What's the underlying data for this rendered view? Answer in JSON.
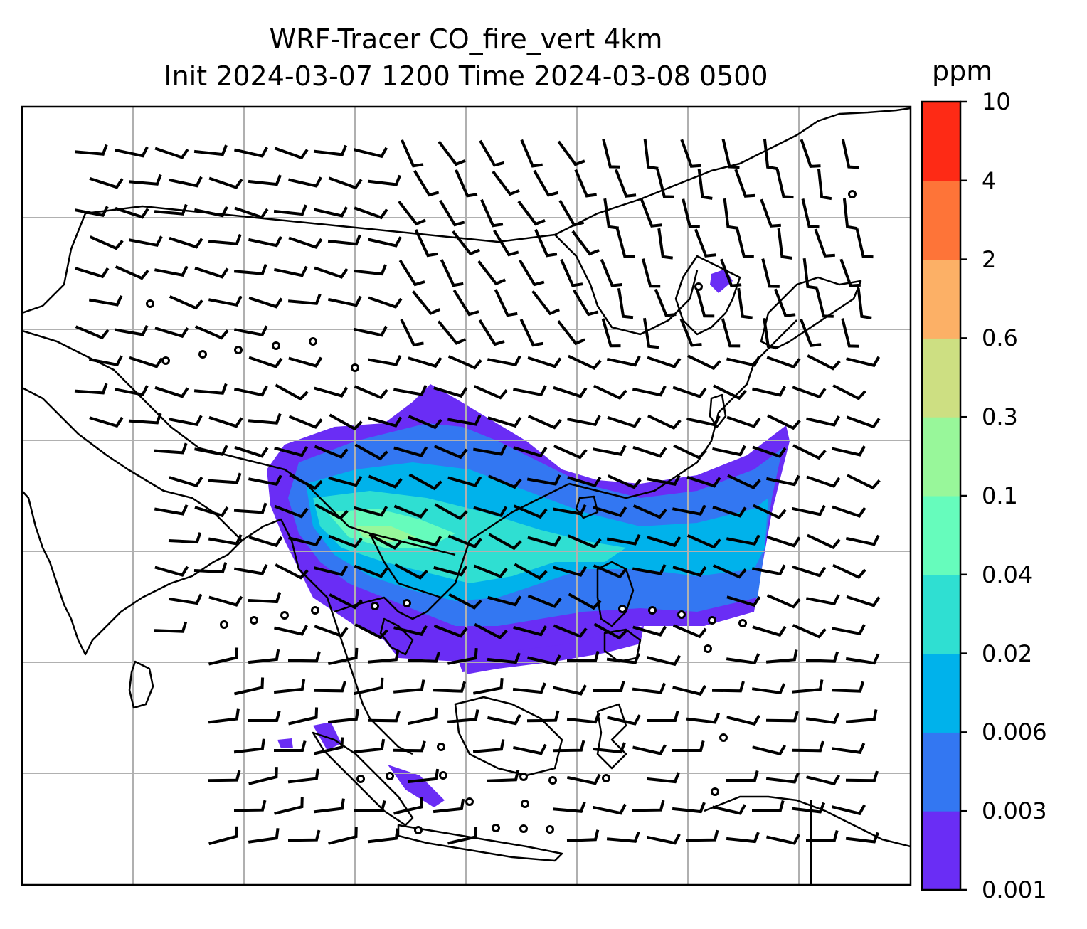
{
  "title": {
    "line1": "WRF-Tracer CO_fire_vert 4km",
    "line2": "Init 2024-03-07 1200 Time 2024-03-08 0500"
  },
  "colorbar": {
    "unit": "ppm",
    "ticks": [
      "0.001",
      "0.003",
      "0.006",
      "0.02",
      "0.04",
      "0.1",
      "0.3",
      "0.6",
      "2",
      "4",
      "10"
    ],
    "colors": [
      "#6a2df5",
      "#3377f2",
      "#00b2eb",
      "#2fdfd2",
      "#66fcbc",
      "#98f79a",
      "#cddf82",
      "#fcb066",
      "#fe7438",
      "#fe2a15"
    ]
  },
  "map": {
    "grid": "on",
    "projection_note": "",
    "wind_barbs": "on",
    "plume_colors": {
      "lowest": "#6a2df5",
      "low": "#3377f2",
      "mid": "#00b2eb",
      "midhigh": "#2fdfd2",
      "high": "#66fcbc",
      "higher": "#98f79a"
    }
  }
}
